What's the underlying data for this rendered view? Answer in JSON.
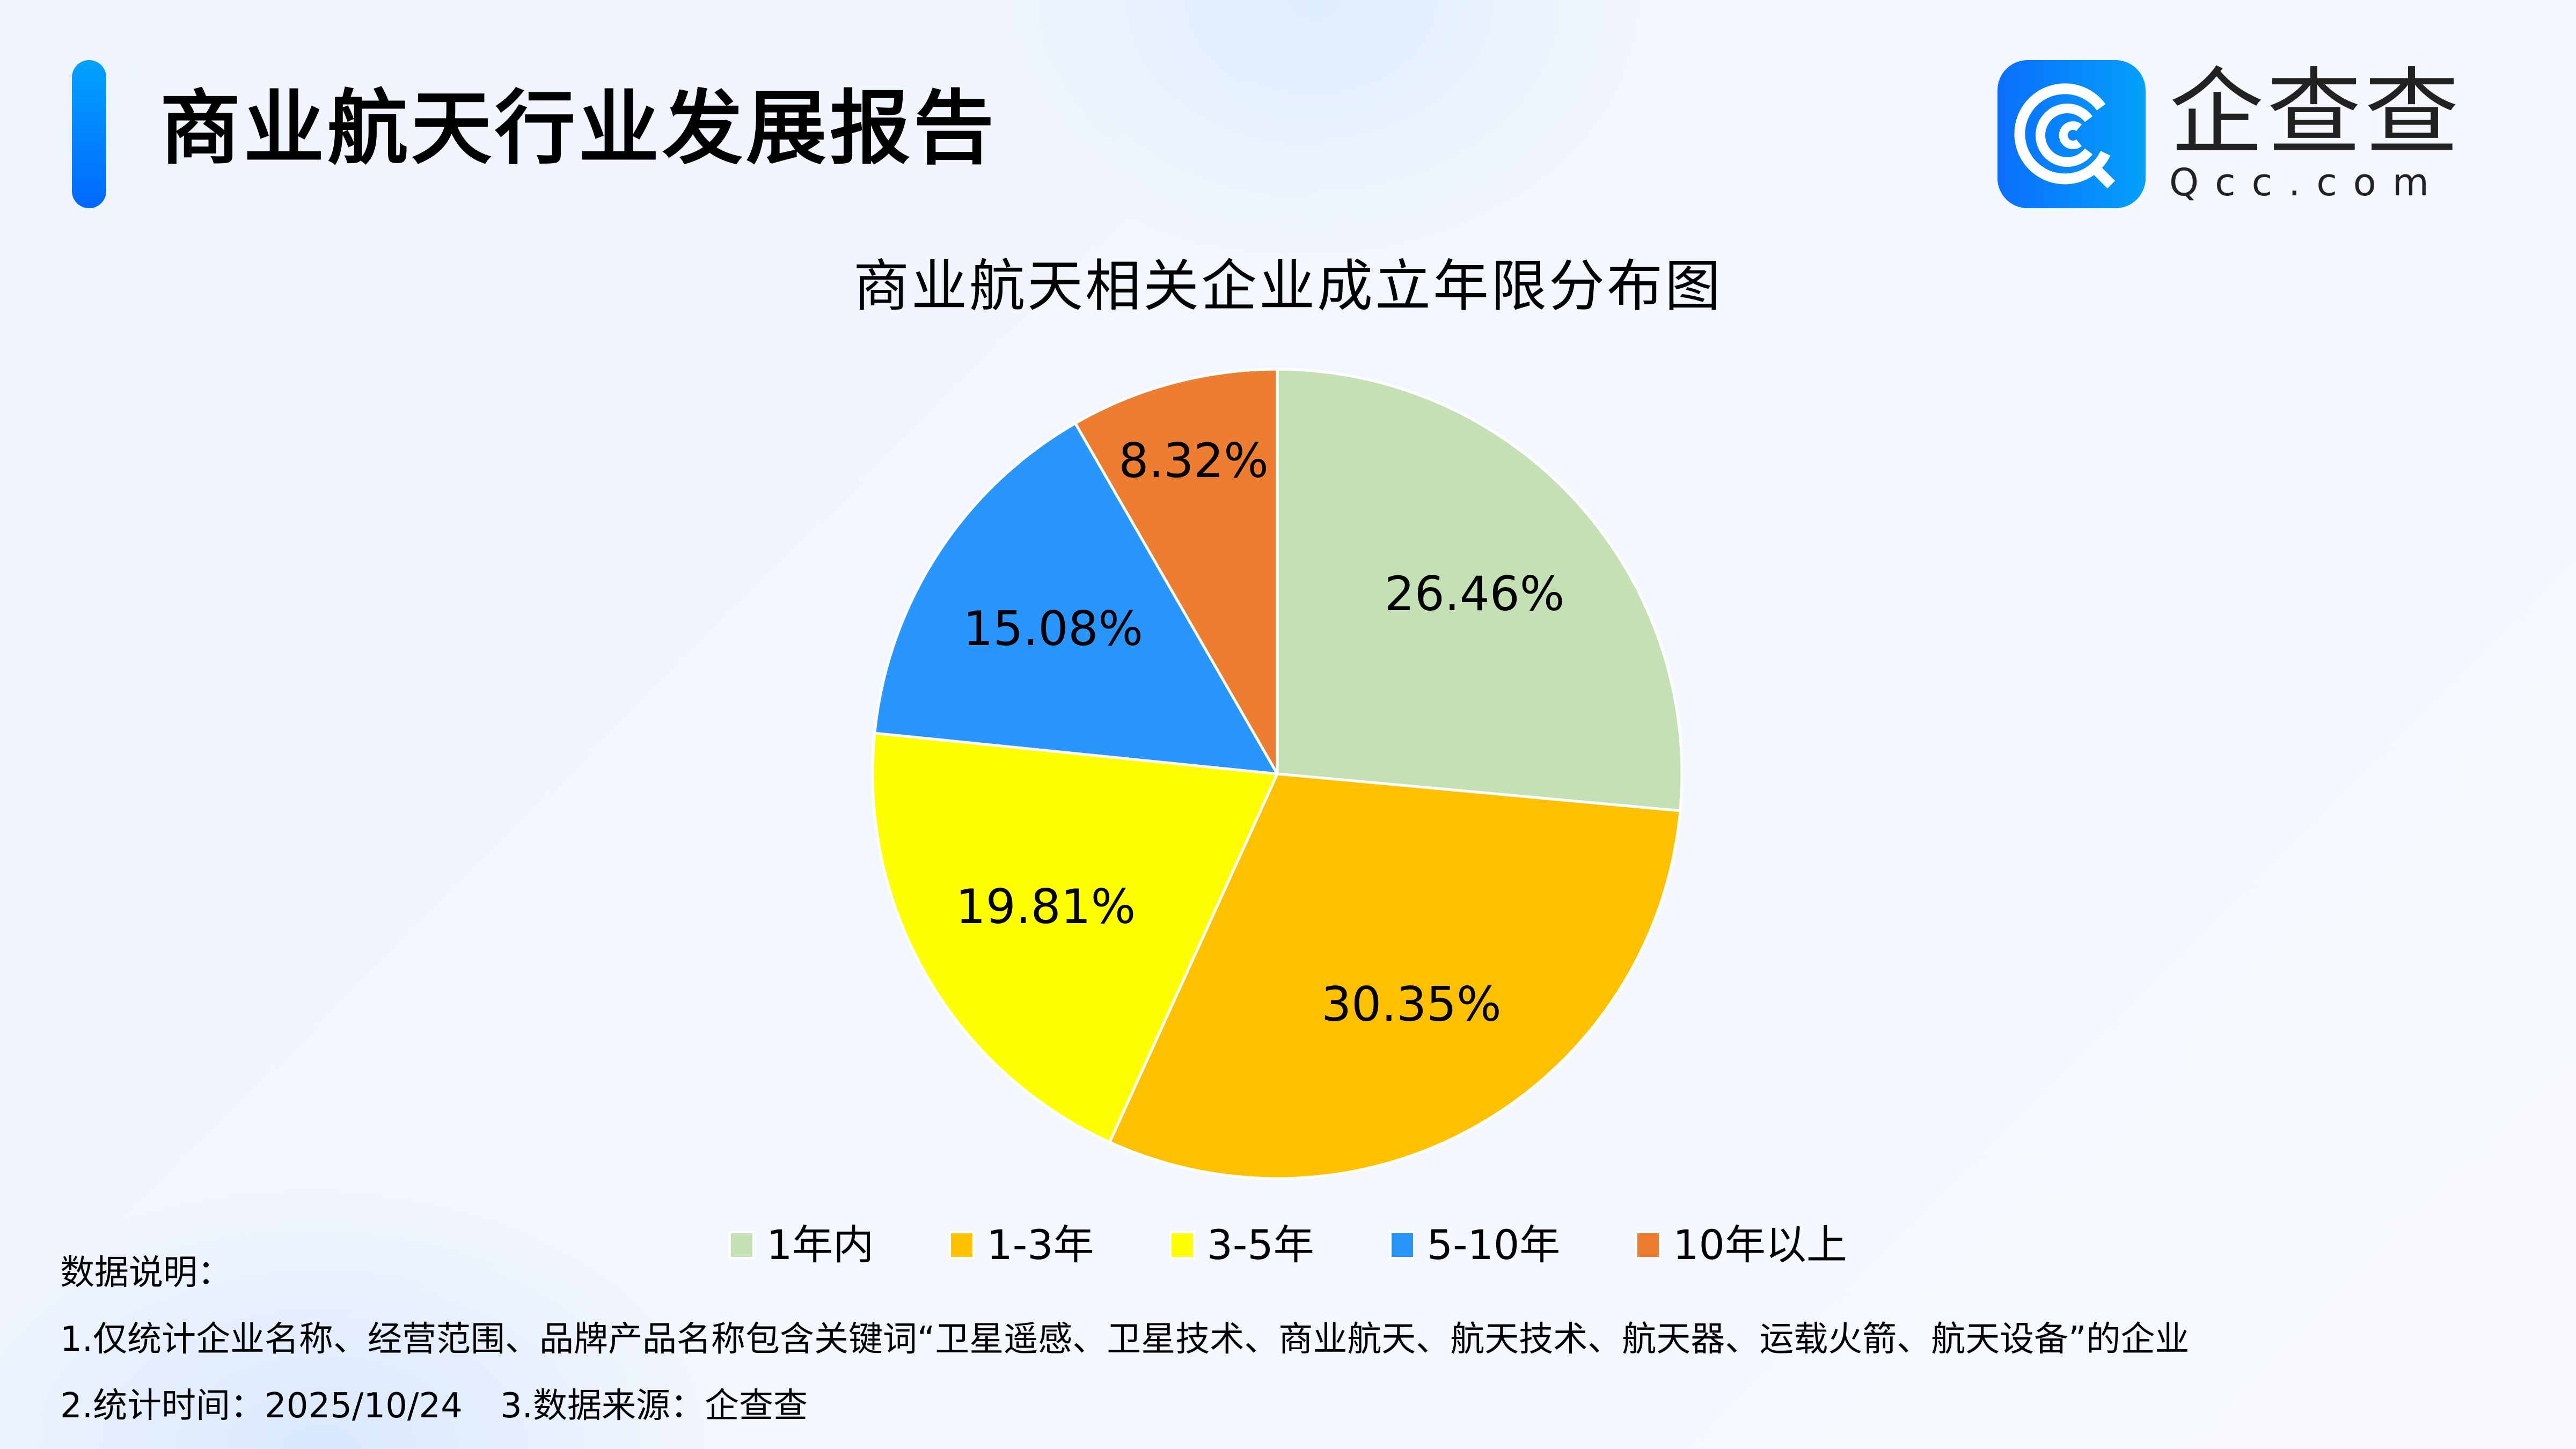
{
  "header": {
    "title": "商业航天行业发展报告",
    "accent_color_top": "#03a2fd",
    "accent_color_bottom": "#0068ff"
  },
  "logo": {
    "icon": "qcc-magnifier-icon",
    "name_cn": "企查查",
    "name_en": "Qcc.com",
    "color": "#0a82fc"
  },
  "chart_data": {
    "type": "pie",
    "title": "商业航天相关企业成立年限分布图",
    "start_angle": "12 o'clock",
    "direction": "clockwise",
    "categories": [
      "1年内",
      "1-3年",
      "3-5年",
      "5-10年",
      "10年以上"
    ],
    "values": [
      26.46,
      30.35,
      19.81,
      15.08,
      8.32
    ],
    "labels": [
      "26.46%",
      "30.35%",
      "19.81%",
      "15.08%",
      "8.32%"
    ],
    "colors": [
      "#c5e0b4",
      "#ffc000",
      "#ffff00",
      "#2896fd",
      "#ed7d31"
    ],
    "unit": "%",
    "legend_position": "bottom"
  },
  "notes": {
    "heading": "数据说明：",
    "line1": "1.仅统计企业名称、经营范围、品牌产品名称包含关键词“卫星遥感、卫星技术、商业航天、航天技术、航天器、运载火箭、航天设备”的企业",
    "line2_part1": "2.统计时间：2025/10/24",
    "line2_part2": "3.数据来源：企查查"
  }
}
